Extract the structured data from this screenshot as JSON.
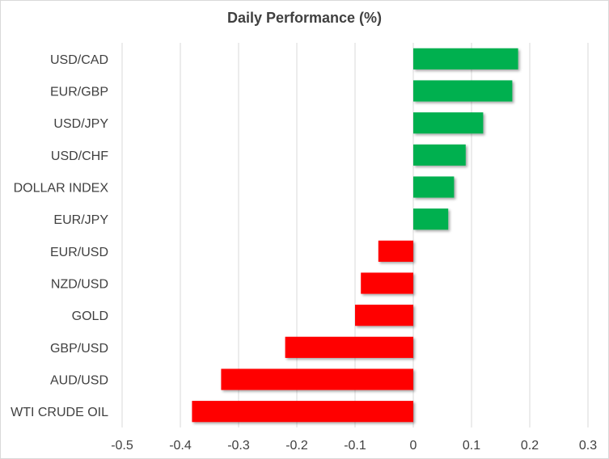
{
  "chart_data": {
    "type": "bar",
    "orientation": "horizontal",
    "title": "Daily Performance (%)",
    "xlabel": "",
    "ylabel": "",
    "categories": [
      "USD/CAD",
      "EUR/GBP",
      "USD/JPY",
      "USD/CHF",
      "DOLLAR INDEX",
      "EUR/JPY",
      "EUR/USD",
      "NZD/USD",
      "GOLD",
      "GBP/USD",
      "AUD/USD",
      "WTI CRUDE OIL"
    ],
    "values": [
      0.18,
      0.17,
      0.12,
      0.09,
      0.07,
      0.06,
      -0.06,
      -0.09,
      -0.1,
      -0.22,
      -0.33,
      -0.38
    ],
    "xlim": [
      -0.5,
      0.3
    ],
    "xticks": [
      -0.5,
      -0.4,
      -0.3,
      -0.2,
      -0.1,
      0,
      0.1,
      0.2,
      0.3
    ],
    "xtick_labels": [
      "-0.5",
      "-0.4",
      "-0.3",
      "-0.2",
      "-0.1",
      "0",
      "0.1",
      "0.2",
      "0.3"
    ],
    "grid": true,
    "legend": "none",
    "colors": {
      "positive": "#00b050",
      "negative": "#ff0000",
      "gridline": "#d9d9d9",
      "text": "#404040"
    }
  }
}
